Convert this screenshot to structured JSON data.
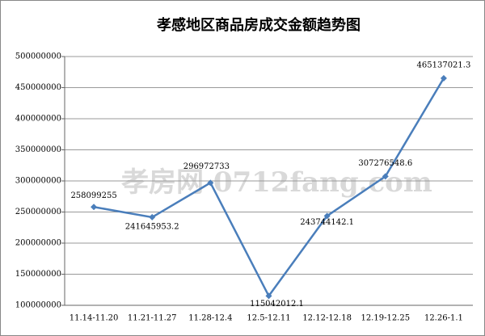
{
  "chart_data": {
    "type": "line",
    "title": "孝感地区商品房成交金额趋势图",
    "categories": [
      "11.14-11.20",
      "11.21-11.27",
      "11.28-12.4",
      "12.5-12.11",
      "12.12-12.18",
      "12.19-12.25",
      "12.26-1.1"
    ],
    "series": [
      {
        "color": "#4a7ebb",
        "values": [
          258099255,
          241645953.2,
          296972733,
          115042012.1,
          243744142.1,
          307276548.6,
          465137021.3
        ]
      }
    ],
    "ylim": [
      100000000,
      500000000
    ],
    "yticks": [
      100000000,
      150000000,
      200000000,
      250000000,
      300000000,
      350000000,
      400000000,
      450000000,
      500000000
    ],
    "grid": true,
    "watermark": "孝房网 0712fang.com"
  }
}
